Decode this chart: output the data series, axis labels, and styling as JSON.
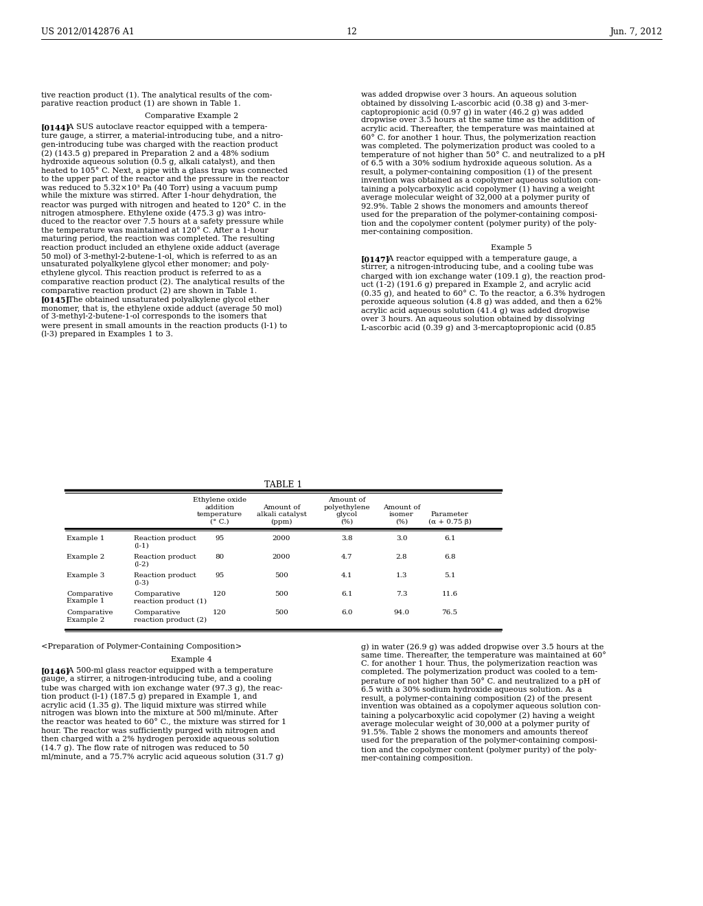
{
  "background_color": "#ffffff",
  "header_left": "US 2012/0142876 A1",
  "header_center": "12",
  "header_right": "Jun. 7, 2012",
  "top_left_text": "tive reaction product (1). The analytical results of the com-\nparative reaction product (1) are shown in Table 1.",
  "left_col_heading": "Comparative Example 2",
  "para_0144": "A SUS autoclave reactor equipped with a tempera-\nture gauge, a stirrer, a material-introducing tube, and a nitro-\ngen-introducing tube was charged with the reaction product\n(2) (143.5 g) prepared in Preparation 2 and a 48% sodium\nhydroxide aqueous solution (0.5 g, alkali catalyst), and then\nheated to 105° C. Next, a pipe with a glass trap was connected\nto the upper part of the reactor and the pressure in the reactor\nwas reduced to 5.32×10³ Pa (40 Torr) using a vacuum pump\nwhile the mixture was stirred. After 1-hour dehydration, the\nreactor was purged with nitrogen and heated to 120° C. in the\nnitrogen atmosphere. Ethylene oxide (475.3 g) was intro-\nduced to the reactor over 7.5 hours at a safety pressure while\nthe temperature was maintained at 120° C. After a 1-hour\nmaturing period, the reaction was completed. The resulting\nreaction product included an ethylene oxide adduct (average\n50 mol) of 3-methyl-2-butene-1-ol, which is referred to as an\nunsaturated polyalkylene glycol ether monomer; and poly-\nethylene glycol. This reaction product is referred to as a\ncomparative reaction product (2). The analytical results of the\ncomparative reaction product (2) are shown in Table 1.",
  "para_0145": "The obtained unsaturated polyalkylene glycol ether\nmonomer, that is, the ethylene oxide adduct (average 50 mol)\nof 3-methyl-2-butene-1-ol corresponds to the isomers that\nwere present in small amounts in the reaction products (l-1) to\n(l-3) prepared in Examples 1 to 3.",
  "top_right_text": "was added dropwise over 3 hours. An aqueous solution\nobtained by dissolving L-ascorbic acid (0.38 g) and 3-mer-\ncaptopropionic acid (0.97 g) in water (46.2 g) was added\ndropwise over 3.5 hours at the same time as the addition of\nacrylic acid. Thereafter, the temperature was maintained at\n60° C. for another 1 hour. Thus, the polymerization reaction\nwas completed. The polymerization product was cooled to a\ntemperature of not higher than 50° C. and neutralized to a pH\nof 6.5 with a 30% sodium hydroxide aqueous solution. As a\nresult, a polymer-containing composition (1) of the present\ninvention was obtained as a copolymer aqueous solution con-\ntaining a polycarboxylic acid copolymer (1) having a weight\naverage molecular weight of 32,000 at a polymer purity of\n92.9%. Table 2 shows the monomers and amounts thereof\nused for the preparation of the polymer-containing composi-\ntion and the copolymer content (polymer purity) of the poly-\nmer-containing composition.",
  "right_col_heading": "Example 5",
  "para_0147": "A reactor equipped with a temperature gauge, a\nstirrer, a nitrogen-introducing tube, and a cooling tube was\ncharged with ion exchange water (109.1 g), the reaction prod-\nuct (1-2) (191.6 g) prepared in Example 2, and acrylic acid\n(0.35 g), and heated to 60° C. To the reactor, a 6.3% hydrogen\nperoxide aqueous solution (4.8 g) was added, and then a 62%\nacrylic acid aqueous solution (41.4 g) was added dropwise\nover 3 hours. An aqueous solution obtained by dissolving\nL-ascorbic acid (0.39 g) and 3-mercaptopropionic acid (0.85",
  "table_title": "TABLE 1",
  "table_col_headers_line1": [
    "",
    "",
    "Ethylene oxide",
    "",
    "Amount of",
    "",
    ""
  ],
  "table_col_headers_line2": [
    "",
    "",
    "addition",
    "Amount of",
    "polyethylene",
    "Amount of",
    ""
  ],
  "table_col_headers_line3": [
    "",
    "",
    "temperature",
    "alkali catalyst",
    "glycol",
    "isomer",
    "Parameter"
  ],
  "table_col_headers_line4": [
    "",
    "",
    "(° C.)",
    "(ppm)",
    "(%)",
    "(%)",
    "(α + 0.75 β)"
  ],
  "table_rows": [
    [
      "Example 1",
      "Reaction product",
      "95",
      "2000",
      "3.8",
      "3.0",
      "6.1",
      "(l-1)"
    ],
    [
      "Example 2",
      "Reaction product",
      "80",
      "2000",
      "4.7",
      "2.8",
      "6.8",
      "(l-2)"
    ],
    [
      "Example 3",
      "Reaction product",
      "95",
      "500",
      "4.1",
      "1.3",
      "5.1",
      "(l-3)"
    ],
    [
      "Comparative",
      "Comparative",
      "120",
      "500",
      "6.1",
      "7.3",
      "11.6",
      "reaction product (1)",
      "Example 1"
    ],
    [
      "Comparative",
      "Comparative",
      "120",
      "500",
      "6.0",
      "94.0",
      "76.5",
      "reaction product (2)",
      "Example 2"
    ]
  ],
  "bottom_prep_heading": "<Preparation of Polymer-Containing Composition>",
  "bottom_ex4_heading": "Example 4",
  "para_0146": "A 500-ml glass reactor equipped with a temperature\ngauge, a stirrer, a nitrogen-introducing tube, and a cooling\ntube was charged with ion exchange water (97.3 g), the reac-\ntion product (l-1) (187.5 g) prepared in Example 1, and\nacrylic acid (1.35 g). The liquid mixture was stirred while\nnitrogen was blown into the mixture at 500 ml/minute. After\nthe reactor was heated to 60° C., the mixture was stirred for 1\nhour. The reactor was sufficiently purged with nitrogen and\nthen charged with a 2% hydrogen peroxide aqueous solution\n(14.7 g). The flow rate of nitrogen was reduced to 50\nml/minute, and a 75.7% acrylic acid aqueous solution (31.7 g)",
  "bottom_right_text": "g) in water (26.9 g) was added dropwise over 3.5 hours at the\nsame time. Thereafter, the temperature was maintained at 60°\nC. for another 1 hour. Thus, the polymerization reaction was\ncompleted. The polymerization product was cooled to a tem-\nperature of not higher than 50° C. and neutralized to a pH of\n6.5 with a 30% sodium hydroxide aqueous solution. As a\nresult, a polymer-containing composition (2) of the present\ninvention was obtained as a copolymer aqueous solution con-\ntaining a polycarboxylic acid copolymer (2) having a weight\naverage molecular weight of 30,000 at a polymer purity of\n91.5%. Table 2 shows the monomers and amounts thereof\nused for the preparation of the polymer-containing composi-\ntion and the copolymer content (polymer purity) of the poly-\nmer-containing composition."
}
